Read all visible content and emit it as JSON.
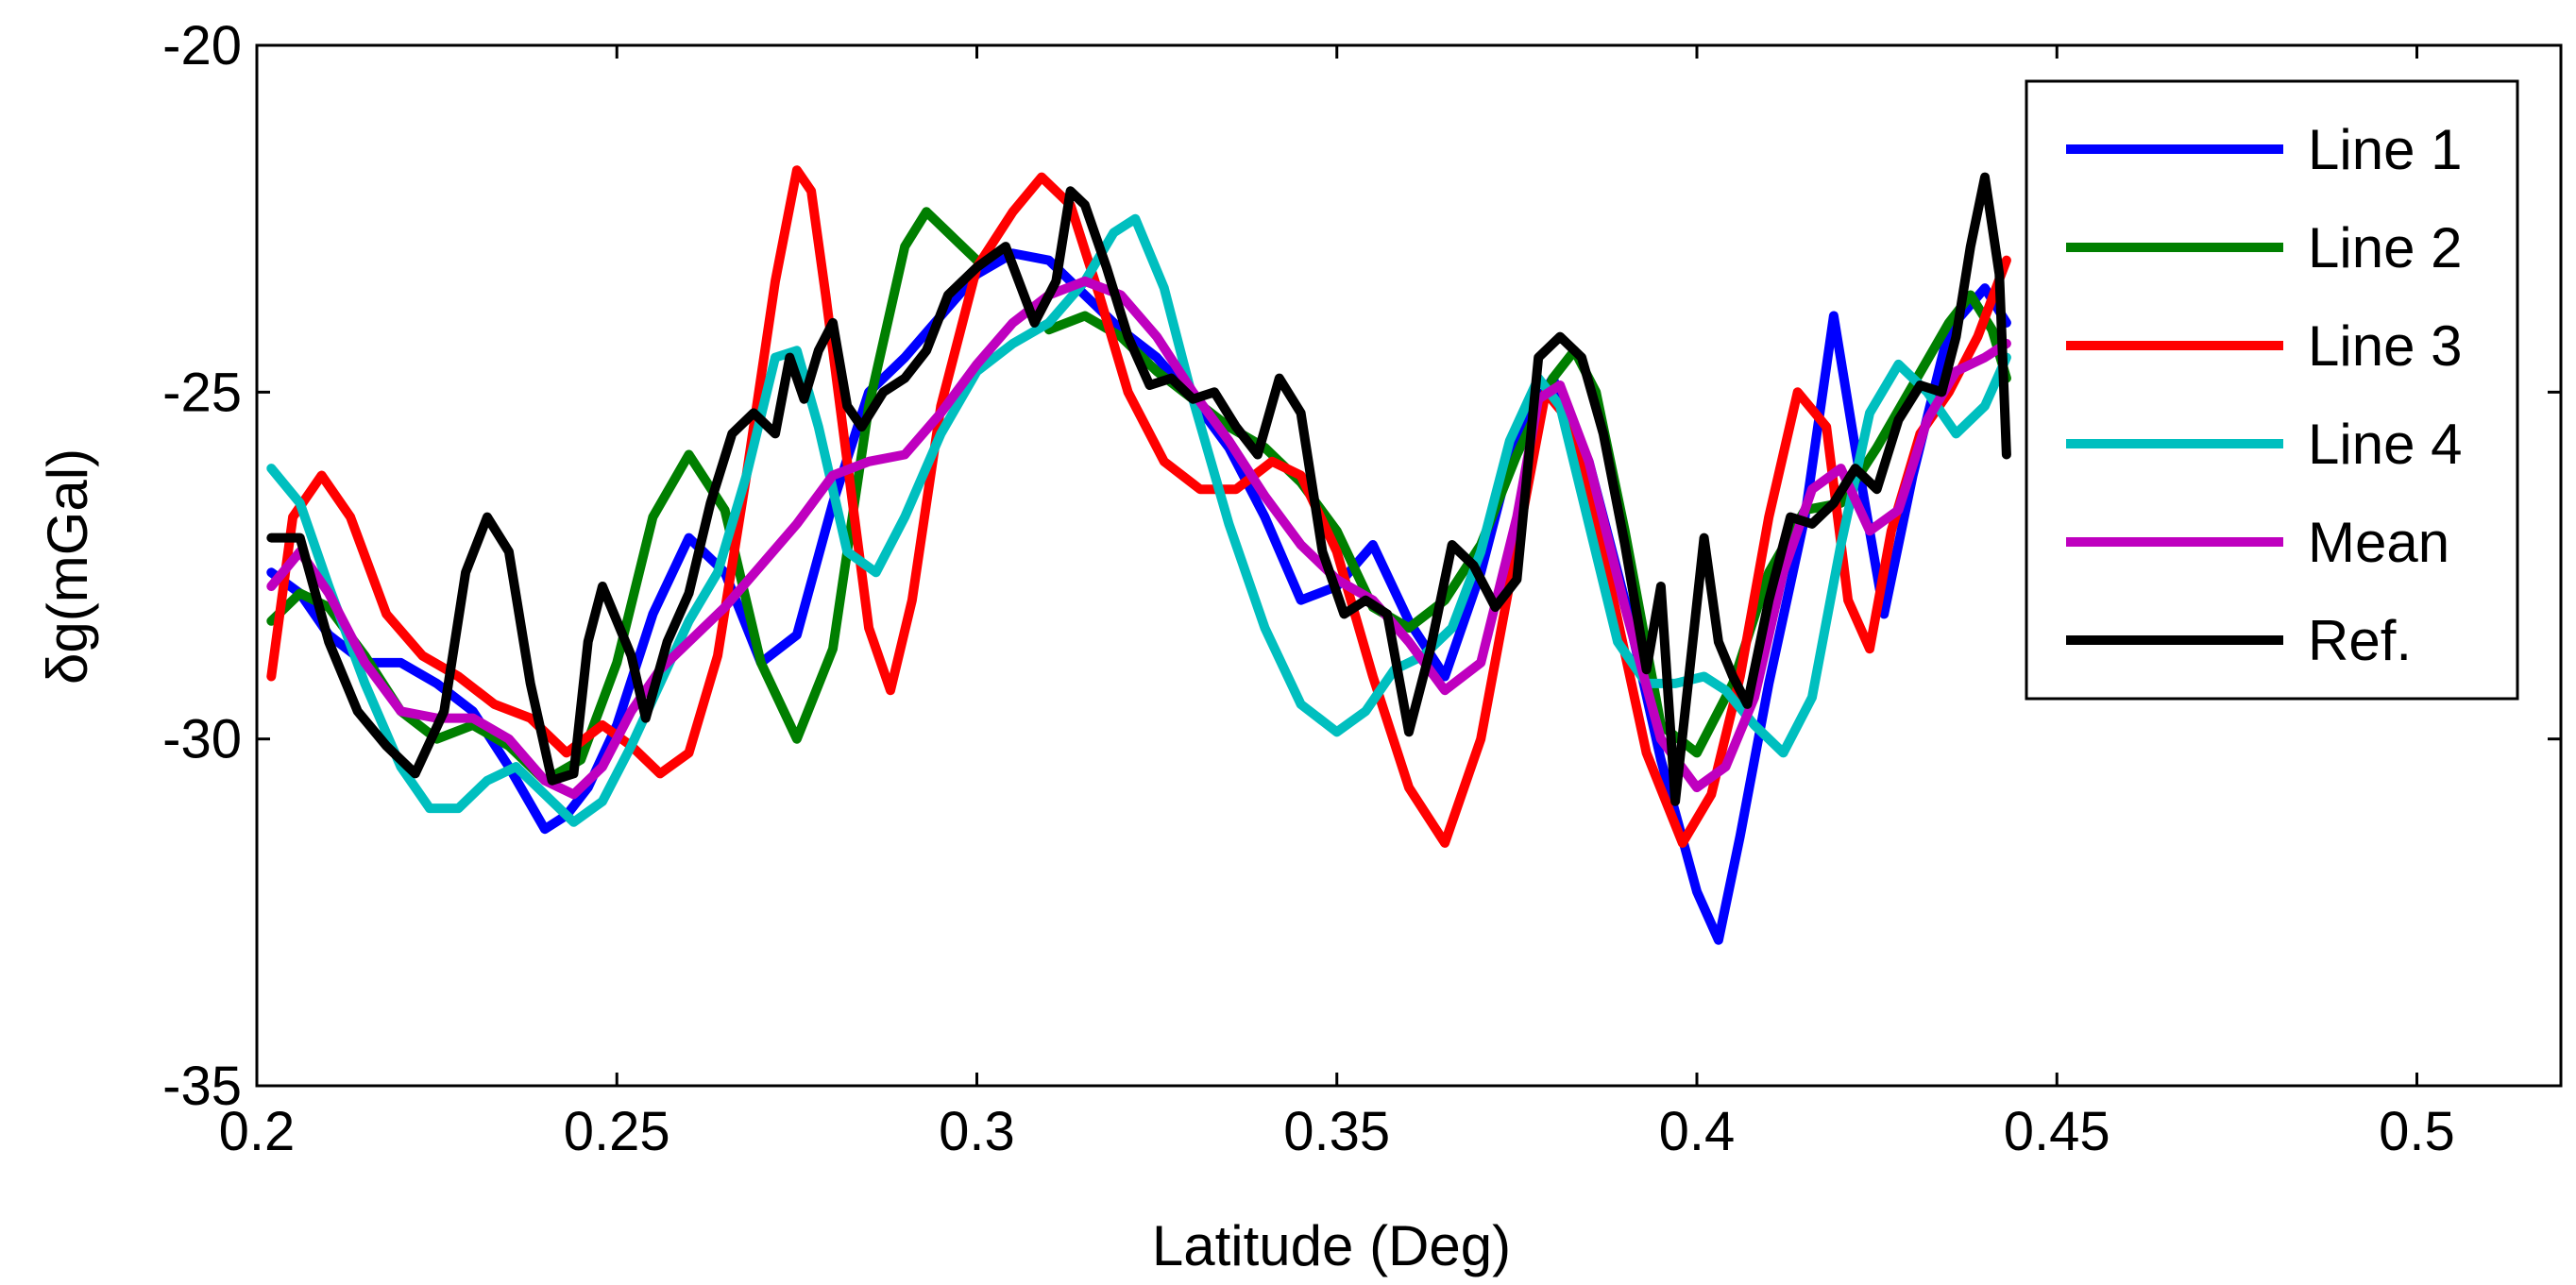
{
  "chart_data": {
    "type": "line",
    "xlabel": "Latitude (Deg)",
    "ylabel": "δg(mGal)",
    "xlim": [
      0.2,
      0.52
    ],
    "ylim": [
      -35,
      -20
    ],
    "xticks": [
      "0.2",
      "0.25",
      "0.3",
      "0.35",
      "0.4",
      "0.45",
      "0.5"
    ],
    "yticks": [
      "-20",
      "-25",
      "-30",
      "-35"
    ],
    "legend_position": "top-right",
    "grid": false,
    "series": [
      {
        "name": "Line 1",
        "color": "#0000ff",
        "x": [
          0.202,
          0.206,
          0.21,
          0.215,
          0.22,
          0.225,
          0.23,
          0.235,
          0.24,
          0.243,
          0.246,
          0.25,
          0.255,
          0.26,
          0.265,
          0.27,
          0.275,
          0.28,
          0.285,
          0.29,
          0.295,
          0.3,
          0.305,
          0.31,
          0.315,
          0.32,
          0.325,
          0.33,
          0.335,
          0.34,
          0.345,
          0.35,
          0.355,
          0.36,
          0.365,
          0.37,
          0.375,
          0.38,
          0.385,
          0.39,
          0.395,
          0.4,
          0.403,
          0.406,
          0.41,
          0.415,
          0.419,
          0.422,
          0.426,
          0.43,
          0.435,
          0.44,
          0.443
        ],
        "values": [
          -27.6,
          -27.9,
          -28.5,
          -28.9,
          -28.9,
          -29.2,
          -29.6,
          -30.4,
          -31.3,
          -31.1,
          -30.7,
          -29.8,
          -28.2,
          -27.1,
          -27.6,
          -28.9,
          -28.5,
          -26.6,
          -25.0,
          -24.5,
          -23.9,
          -23.3,
          -23.0,
          -23.1,
          -23.6,
          -24.1,
          -24.5,
          -25.1,
          -25.8,
          -26.8,
          -28.0,
          -27.8,
          -27.2,
          -28.3,
          -29.1,
          -27.6,
          -25.6,
          -24.8,
          -26.0,
          -28.0,
          -30.3,
          -32.2,
          -32.9,
          -31.4,
          -29.2,
          -26.8,
          -23.9,
          -25.8,
          -28.2,
          -26.2,
          -24.1,
          -23.5,
          -24.0
        ]
      },
      {
        "name": "Line 2",
        "color": "#007f00",
        "x": [
          0.202,
          0.206,
          0.21,
          0.215,
          0.22,
          0.225,
          0.23,
          0.235,
          0.24,
          0.245,
          0.25,
          0.255,
          0.26,
          0.265,
          0.27,
          0.275,
          0.28,
          0.285,
          0.29,
          0.293,
          0.296,
          0.3
        ],
        "values": [
          -28.3,
          -27.9,
          -28.1,
          -28.8,
          -29.6,
          -30.0,
          -29.8,
          -30.1,
          -30.6,
          -30.3,
          -28.9,
          -26.8,
          -25.9,
          -26.7,
          -28.9,
          -30.0,
          -28.7,
          -25.2,
          -22.9,
          -22.4,
          -22.7,
          -23.1
        ]
      },
      {
        "name": "Line 2",
        "color": "#007f00",
        "x": [
          0.31,
          0.315,
          0.32,
          0.325,
          0.33,
          0.335,
          0.34,
          0.345,
          0.35,
          0.355,
          0.36,
          0.365,
          0.37,
          0.375,
          0.38,
          0.383,
          0.386,
          0.39,
          0.395,
          0.4,
          0.405,
          0.41,
          0.415,
          0.42,
          0.425,
          0.43,
          0.435,
          0.438,
          0.441,
          0.443
        ],
        "values": [
          -24.1,
          -23.9,
          -24.2,
          -24.7,
          -25.1,
          -25.5,
          -25.8,
          -26.3,
          -27.0,
          -28.1,
          -28.4,
          -28.0,
          -27.2,
          -25.9,
          -24.8,
          -24.4,
          -25.0,
          -27.0,
          -29.8,
          -30.2,
          -29.2,
          -27.6,
          -26.7,
          -26.6,
          -25.8,
          -24.9,
          -24.0,
          -23.6,
          -24.1,
          -24.8
        ]
      },
      {
        "name": "Line 3",
        "color": "#ff0000",
        "x": [
          0.202,
          0.205,
          0.209,
          0.213,
          0.218,
          0.223,
          0.228,
          0.233,
          0.238,
          0.243,
          0.248,
          0.252,
          0.256,
          0.26,
          0.264,
          0.268,
          0.272,
          0.275,
          0.277,
          0.279,
          0.282,
          0.285,
          0.288,
          0.291,
          0.295,
          0.3,
          0.305,
          0.309,
          0.313,
          0.317,
          0.321,
          0.326,
          0.331,
          0.336,
          0.341,
          0.345,
          0.35,
          0.355,
          0.36,
          0.365,
          0.37,
          0.375,
          0.379,
          0.383,
          0.388,
          0.393,
          0.398,
          0.402,
          0.406,
          0.41,
          0.414,
          0.418,
          0.421,
          0.424,
          0.427,
          0.431,
          0.435,
          0.439,
          0.443
        ],
        "values": [
          -29.1,
          -26.8,
          -26.2,
          -26.8,
          -28.2,
          -28.8,
          -29.1,
          -29.5,
          -29.7,
          -30.2,
          -29.8,
          -30.1,
          -30.5,
          -30.2,
          -28.8,
          -26.2,
          -23.4,
          -21.8,
          -22.1,
          -23.6,
          -26.0,
          -28.4,
          -29.3,
          -28.0,
          -25.2,
          -23.2,
          -22.4,
          -21.9,
          -22.3,
          -23.6,
          -25.0,
          -26.0,
          -26.4,
          -26.4,
          -26.0,
          -26.2,
          -27.3,
          -29.1,
          -30.7,
          -31.5,
          -30.0,
          -27.2,
          -25.0,
          -25.5,
          -27.8,
          -30.2,
          -31.5,
          -30.8,
          -29.1,
          -26.8,
          -25.0,
          -25.5,
          -28.0,
          -28.7,
          -27.0,
          -25.6,
          -25.0,
          -24.2,
          -23.1
        ]
      },
      {
        "name": "Line 4",
        "color": "#00bfbf",
        "x": [
          0.202,
          0.206,
          0.21,
          0.215,
          0.22,
          0.224,
          0.228,
          0.232,
          0.236,
          0.24,
          0.244,
          0.248,
          0.252,
          0.256,
          0.26,
          0.264,
          0.268,
          0.272,
          0.275,
          0.278,
          0.282,
          0.286,
          0.29,
          0.295,
          0.3,
          0.305,
          0.31,
          0.315,
          0.319,
          0.322,
          0.326,
          0.33,
          0.335,
          0.34,
          0.345,
          0.35,
          0.354,
          0.358,
          0.362,
          0.366,
          0.37,
          0.374,
          0.378,
          0.381,
          0.385,
          0.389,
          0.393,
          0.397,
          0.401,
          0.404,
          0.408,
          0.412,
          0.416,
          0.42,
          0.424,
          0.428,
          0.432,
          0.436,
          0.44,
          0.443
        ],
        "values": [
          -26.1,
          -26.6,
          -27.8,
          -29.2,
          -30.4,
          -31.0,
          -31.0,
          -30.6,
          -30.4,
          -30.8,
          -31.2,
          -30.9,
          -30.1,
          -29.2,
          -28.3,
          -27.6,
          -26.2,
          -24.5,
          -24.4,
          -25.5,
          -27.3,
          -27.6,
          -26.8,
          -25.6,
          -24.7,
          -24.3,
          -24.0,
          -23.4,
          -22.7,
          -22.5,
          -23.5,
          -25.1,
          -26.9,
          -28.4,
          -29.5,
          -29.9,
          -29.6,
          -29.0,
          -28.8,
          -28.4,
          -27.3,
          -25.7,
          -24.8,
          -25.2,
          -26.9,
          -28.6,
          -29.2,
          -29.2,
          -29.1,
          -29.3,
          -29.8,
          -30.2,
          -29.4,
          -27.2,
          -25.3,
          -24.6,
          -25.0,
          -25.6,
          -25.2,
          -24.5
        ]
      },
      {
        "name": "Mean",
        "color": "#bf00bf",
        "x": [
          0.202,
          0.206,
          0.21,
          0.215,
          0.22,
          0.225,
          0.23,
          0.235,
          0.24,
          0.244,
          0.248,
          0.252,
          0.256,
          0.26,
          0.265,
          0.27,
          0.275,
          0.28,
          0.285,
          0.29,
          0.295,
          0.3,
          0.305,
          0.31,
          0.315,
          0.32,
          0.325,
          0.33,
          0.335,
          0.34,
          0.345,
          0.35,
          0.355,
          0.36,
          0.365,
          0.37,
          0.375,
          0.378,
          0.381,
          0.385,
          0.39,
          0.395,
          0.4,
          0.404,
          0.408,
          0.412,
          0.416,
          0.42,
          0.424,
          0.428,
          0.432,
          0.436,
          0.44,
          0.443
        ],
        "values": [
          -27.8,
          -27.3,
          -27.9,
          -28.9,
          -29.6,
          -29.7,
          -29.7,
          -30.0,
          -30.6,
          -30.8,
          -30.4,
          -29.6,
          -29.0,
          -28.6,
          -28.1,
          -27.5,
          -26.9,
          -26.2,
          -26.0,
          -25.9,
          -25.3,
          -24.6,
          -24.0,
          -23.6,
          -23.4,
          -23.6,
          -24.2,
          -25.0,
          -25.7,
          -26.5,
          -27.2,
          -27.7,
          -28.0,
          -28.6,
          -29.3,
          -28.9,
          -26.8,
          -25.1,
          -24.9,
          -26.0,
          -28.1,
          -30.0,
          -30.7,
          -30.4,
          -29.4,
          -27.6,
          -26.4,
          -26.1,
          -27.0,
          -26.7,
          -25.4,
          -24.7,
          -24.5,
          -24.3
        ]
      },
      {
        "name": "Ref.",
        "color": "#000000",
        "x": [
          0.202,
          0.206,
          0.21,
          0.214,
          0.218,
          0.222,
          0.226,
          0.229,
          0.232,
          0.235,
          0.238,
          0.241,
          0.244,
          0.246,
          0.248,
          0.25,
          0.252,
          0.254,
          0.257,
          0.26,
          0.263,
          0.266,
          0.269,
          0.272,
          0.274,
          0.276,
          0.278,
          0.28,
          0.282,
          0.284,
          0.287,
          0.29,
          0.293,
          0.296,
          0.3,
          0.304,
          0.308,
          0.311,
          0.313,
          0.315,
          0.318,
          0.321,
          0.324,
          0.327,
          0.33,
          0.333,
          0.336,
          0.339,
          0.342,
          0.345,
          0.348,
          0.351,
          0.354,
          0.357,
          0.36,
          0.363,
          0.366,
          0.369,
          0.372,
          0.375,
          0.378,
          0.381,
          0.384,
          0.387,
          0.39,
          0.393,
          0.395,
          0.397,
          0.399,
          0.401,
          0.403,
          0.405,
          0.407,
          0.41,
          0.413,
          0.416,
          0.419,
          0.422,
          0.425,
          0.428,
          0.431,
          0.434,
          0.436,
          0.438,
          0.44,
          0.442,
          0.443
        ],
        "values": [
          -27.1,
          -27.1,
          -28.6,
          -29.6,
          -30.1,
          -30.5,
          -29.6,
          -27.6,
          -26.8,
          -27.3,
          -29.2,
          -30.6,
          -30.5,
          -28.6,
          -27.8,
          -28.3,
          -28.8,
          -29.7,
          -28.6,
          -27.9,
          -26.6,
          -25.6,
          -25.3,
          -25.6,
          -24.5,
          -25.1,
          -24.4,
          -24.0,
          -25.2,
          -25.5,
          -25.0,
          -24.8,
          -24.4,
          -23.6,
          -23.2,
          -22.9,
          -24.0,
          -23.4,
          -22.1,
          -22.3,
          -23.2,
          -24.2,
          -24.9,
          -24.8,
          -25.1,
          -25.0,
          -25.5,
          -25.9,
          -24.8,
          -25.3,
          -27.3,
          -28.2,
          -28.0,
          -28.2,
          -29.9,
          -28.7,
          -27.2,
          -27.5,
          -28.1,
          -27.7,
          -24.5,
          -24.2,
          -24.5,
          -25.6,
          -27.2,
          -29.0,
          -27.8,
          -30.9,
          -29.0,
          -27.1,
          -28.6,
          -29.1,
          -29.5,
          -28.0,
          -26.8,
          -26.9,
          -26.6,
          -26.1,
          -26.4,
          -25.4,
          -24.9,
          -25.0,
          -24.2,
          -22.9,
          -21.9,
          -23.3,
          -25.9
        ]
      }
    ]
  }
}
